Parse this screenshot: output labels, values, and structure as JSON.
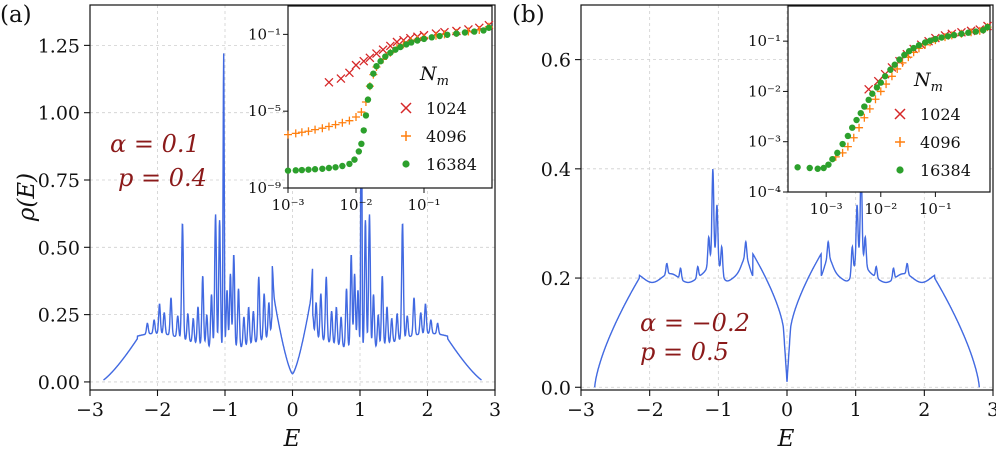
{
  "chart_data": [
    {
      "panel_label": "(a)",
      "type": "line",
      "xlabel": "E",
      "ylabel": "ρ(E)",
      "xlim": [
        -3,
        3
      ],
      "ylim": [
        -0.03,
        1.4
      ],
      "xticks": [
        -3,
        -2,
        -1,
        0,
        1,
        2,
        3
      ],
      "xtick_labels": [
        "−3",
        "−2",
        "−1",
        "0",
        "1",
        "2",
        "3"
      ],
      "yticks": [
        0.0,
        0.25,
        0.5,
        0.75,
        1.0,
        1.25
      ],
      "ytick_labels": [
        "0.00",
        "0.25",
        "0.50",
        "0.75",
        "1.00",
        "1.25"
      ],
      "grid": true,
      "annotation": [
        "α = 0.1",
        "p = 0.4"
      ],
      "series_color": "#4169e1",
      "spikes": [
        {
          "x": 0.3,
          "h": 0.08
        },
        {
          "x": 0.35,
          "h": 0.13
        },
        {
          "x": 0.42,
          "h": 0.17
        },
        {
          "x": 0.5,
          "h": 0.24
        },
        {
          "x": 0.58,
          "h": 0.12
        },
        {
          "x": 0.65,
          "h": 0.14
        },
        {
          "x": 0.72,
          "h": 0.11
        },
        {
          "x": 0.8,
          "h": 0.22
        },
        {
          "x": 0.87,
          "h": 0.35
        },
        {
          "x": 0.92,
          "h": 0.28
        },
        {
          "x": 0.97,
          "h": 0.22
        },
        {
          "x": 1.02,
          "h": 1.1
        },
        {
          "x": 1.08,
          "h": 0.48
        },
        {
          "x": 1.14,
          "h": 0.5
        },
        {
          "x": 1.2,
          "h": 0.2
        },
        {
          "x": 1.27,
          "h": 0.12
        },
        {
          "x": 1.33,
          "h": 0.26
        },
        {
          "x": 1.4,
          "h": 0.14
        },
        {
          "x": 1.47,
          "h": 0.09
        },
        {
          "x": 1.55,
          "h": 0.1
        },
        {
          "x": 1.63,
          "h": 0.43
        },
        {
          "x": 1.7,
          "h": 0.08
        },
        {
          "x": 1.8,
          "h": 0.14
        },
        {
          "x": 1.9,
          "h": 0.08
        },
        {
          "x": 1.97,
          "h": 0.11
        },
        {
          "x": 2.05,
          "h": 0.05
        },
        {
          "x": 2.15,
          "h": 0.04
        }
      ],
      "inset": {
        "type": "scatter",
        "xscale": "log",
        "yscale": "log",
        "xlim": [
          0.001,
          1.0
        ],
        "ylim": [
          1e-09,
          3.0
        ],
        "xticks": [
          0.001,
          0.01,
          0.1
        ],
        "xtick_labels": [
          "10⁻³",
          "10⁻²",
          "10⁻¹"
        ],
        "yticks": [
          0.1,
          1e-05,
          1e-09
        ],
        "ytick_labels": [
          "10⁻¹",
          "10⁻⁵",
          "10⁻⁹"
        ],
        "legend_title": "N_m",
        "legend_position": "right",
        "series": [
          {
            "name": "1024",
            "marker": "x",
            "color": "#d62728",
            "points": [
              [
                0.004,
                0.00032
              ],
              [
                0.006,
                0.0005
              ],
              [
                0.008,
                0.001
              ],
              [
                0.01,
                0.0025
              ],
              [
                0.013,
                0.004
              ],
              [
                0.016,
                0.006
              ],
              [
                0.02,
                0.01
              ],
              [
                0.025,
                0.016
              ],
              [
                0.032,
                0.025
              ],
              [
                0.04,
                0.04
              ],
              [
                0.05,
                0.05
              ],
              [
                0.063,
                0.063
              ],
              [
                0.08,
                0.075
              ],
              [
                0.1,
                0.09
              ],
              [
                0.15,
                0.11
              ],
              [
                0.2,
                0.13
              ],
              [
                0.3,
                0.15
              ],
              [
                0.45,
                0.18
              ],
              [
                0.65,
                0.22
              ],
              [
                0.9,
                0.3
              ]
            ]
          },
          {
            "name": "4096",
            "marker": "+",
            "color": "#ff7f0e",
            "points": [
              [
                0.001,
                6e-07
              ],
              [
                0.0013,
                7e-07
              ],
              [
                0.0016,
                8e-07
              ],
              [
                0.002,
                9e-07
              ],
              [
                0.0025,
                1.1e-06
              ],
              [
                0.0032,
                1.3e-06
              ],
              [
                0.004,
                1.6e-06
              ],
              [
                0.005,
                2e-06
              ],
              [
                0.0063,
                2.5e-06
              ],
              [
                0.008,
                3.2e-06
              ],
              [
                0.01,
                5e-06
              ],
              [
                0.012,
                9e-06
              ],
              [
                0.014,
                3e-05
              ],
              [
                0.016,
                0.0002
              ],
              [
                0.018,
                0.0008
              ],
              [
                0.02,
                0.002
              ],
              [
                0.025,
                0.005
              ],
              [
                0.032,
                0.011
              ],
              [
                0.04,
                0.02
              ],
              [
                0.05,
                0.03
              ],
              [
                0.065,
                0.045
              ],
              [
                0.08,
                0.055
              ],
              [
                0.1,
                0.068
              ],
              [
                0.15,
                0.085
              ],
              [
                0.2,
                0.1
              ],
              [
                0.3,
                0.12
              ],
              [
                0.45,
                0.14
              ],
              [
                0.65,
                0.17
              ],
              [
                0.9,
                0.25
              ]
            ]
          },
          {
            "name": "16384",
            "marker": "dot",
            "color": "#2ca02c",
            "points": [
              [
                0.001,
                8e-09
              ],
              [
                0.0013,
                8.3e-09
              ],
              [
                0.0016,
                8.6e-09
              ],
              [
                0.002,
                9e-09
              ],
              [
                0.0025,
                9.5e-09
              ],
              [
                0.0032,
                1e-08
              ],
              [
                0.004,
                1.1e-08
              ],
              [
                0.005,
                1.2e-08
              ],
              [
                0.0063,
                1.4e-08
              ],
              [
                0.008,
                1.8e-08
              ],
              [
                0.0095,
                3e-08
              ],
              [
                0.011,
                8e-08
              ],
              [
                0.012,
                2e-07
              ],
              [
                0.013,
                1e-06
              ],
              [
                0.014,
                6e-06
              ],
              [
                0.015,
                4e-05
              ],
              [
                0.016,
                0.0002
              ],
              [
                0.018,
                0.0009
              ],
              [
                0.02,
                0.0022
              ],
              [
                0.023,
                0.004
              ],
              [
                0.027,
                0.007
              ],
              [
                0.032,
                0.011
              ],
              [
                0.038,
                0.016
              ],
              [
                0.045,
                0.022
              ],
              [
                0.055,
                0.03
              ],
              [
                0.065,
                0.038
              ],
              [
                0.08,
                0.048
              ],
              [
                0.1,
                0.058
              ],
              [
                0.13,
                0.07
              ],
              [
                0.17,
                0.082
              ],
              [
                0.22,
                0.095
              ],
              [
                0.3,
                0.11
              ],
              [
                0.4,
                0.125
              ],
              [
                0.55,
                0.14
              ],
              [
                0.75,
                0.16
              ],
              [
                0.9,
                0.22
              ]
            ]
          }
        ]
      }
    },
    {
      "panel_label": "(b)",
      "type": "line",
      "xlabel": "E",
      "ylabel": "",
      "xlim": [
        -3,
        3
      ],
      "ylim": [
        -0.005,
        0.7
      ],
      "xticks": [
        -3,
        -2,
        -1,
        0,
        1,
        2,
        3
      ],
      "xtick_labels": [
        "−3",
        "−2",
        "−1",
        "0",
        "1",
        "2",
        "3"
      ],
      "yticks": [
        0.0,
        0.2,
        0.4,
        0.6
      ],
      "ytick_labels": [
        "0.0",
        "0.2",
        "0.4",
        "0.6"
      ],
      "grid": true,
      "annotation": [
        "α = −0.2",
        "p = 0.5"
      ],
      "series_color": "#4169e1",
      "spikes": [
        {
          "x": 0.6,
          "h": 0.03
        },
        {
          "x": 0.95,
          "h": 0.05
        },
        {
          "x": 1.02,
          "h": 0.1
        },
        {
          "x": 1.08,
          "h": 0.16
        },
        {
          "x": 1.14,
          "h": 0.05
        },
        {
          "x": 1.3,
          "h": 0.02
        },
        {
          "x": 1.55,
          "h": 0.02
        },
        {
          "x": 1.75,
          "h": 0.02
        }
      ],
      "inset": {
        "type": "scatter",
        "xscale": "log",
        "yscale": "log",
        "xlim": [
          0.0002,
          1.0
        ],
        "ylim": [
          0.0001,
          0.5
        ],
        "xticks": [
          0.001,
          0.01,
          0.1
        ],
        "xtick_labels": [
          "10⁻³",
          "10⁻²",
          "10⁻¹"
        ],
        "yticks": [
          0.1,
          0.01,
          0.001,
          0.0001
        ],
        "ytick_labels": [
          "10⁻¹",
          "10⁻²",
          "10⁻³",
          "10⁻⁴"
        ],
        "legend_title": "N_m",
        "legend_position": "right",
        "series": [
          {
            "name": "1024",
            "marker": "x",
            "color": "#d62728",
            "points": [
              [
                0.006,
                0.011
              ],
              [
                0.009,
                0.016
              ],
              [
                0.012,
                0.022
              ],
              [
                0.016,
                0.03
              ],
              [
                0.022,
                0.04
              ],
              [
                0.03,
                0.055
              ],
              [
                0.04,
                0.07
              ],
              [
                0.055,
                0.085
              ],
              [
                0.075,
                0.1
              ],
              [
                0.1,
                0.115
              ],
              [
                0.15,
                0.13
              ],
              [
                0.2,
                0.14
              ],
              [
                0.3,
                0.15
              ],
              [
                0.45,
                0.16
              ],
              [
                0.65,
                0.17
              ],
              [
                0.9,
                0.2
              ]
            ]
          },
          {
            "name": "4096",
            "marker": "+",
            "color": "#ff7f0e",
            "points": [
              [
                0.0015,
                0.0005
              ],
              [
                0.002,
                0.0006
              ],
              [
                0.0025,
                0.0008
              ],
              [
                0.0032,
                0.0012
              ],
              [
                0.004,
                0.0019
              ],
              [
                0.005,
                0.003
              ],
              [
                0.0063,
                0.0045
              ],
              [
                0.008,
                0.007
              ],
              [
                0.01,
                0.01
              ],
              [
                0.0125,
                0.014
              ],
              [
                0.016,
                0.02
              ],
              [
                0.02,
                0.028
              ],
              [
                0.025,
                0.037
              ],
              [
                0.032,
                0.048
              ],
              [
                0.04,
                0.06
              ],
              [
                0.05,
                0.072
              ],
              [
                0.065,
                0.085
              ],
              [
                0.08,
                0.095
              ],
              [
                0.1,
                0.105
              ],
              [
                0.15,
                0.12
              ],
              [
                0.2,
                0.13
              ],
              [
                0.3,
                0.14
              ],
              [
                0.45,
                0.15
              ],
              [
                0.65,
                0.16
              ],
              [
                0.9,
                0.19
              ]
            ]
          },
          {
            "name": "16384",
            "marker": "dot",
            "color": "#2ca02c",
            "points": [
              [
                0.0003,
                0.00031
              ],
              [
                0.0005,
                0.0003
              ],
              [
                0.0007,
                0.00029
              ],
              [
                0.0009,
                0.0003
              ],
              [
                0.0011,
                0.00035
              ],
              [
                0.0013,
                0.00045
              ],
              [
                0.0016,
                0.0006
              ],
              [
                0.002,
                0.0009
              ],
              [
                0.0025,
                0.0013
              ],
              [
                0.003,
                0.0019
              ],
              [
                0.0036,
                0.0027
              ],
              [
                0.0043,
                0.0037
              ],
              [
                0.005,
                0.005
              ],
              [
                0.006,
                0.0068
              ],
              [
                0.007,
                0.009
              ],
              [
                0.0085,
                0.012
              ],
              [
                0.01,
                0.015
              ],
              [
                0.012,
                0.02
              ],
              [
                0.015,
                0.027
              ],
              [
                0.018,
                0.034
              ],
              [
                0.022,
                0.043
              ],
              [
                0.027,
                0.053
              ],
              [
                0.033,
                0.063
              ],
              [
                0.04,
                0.073
              ],
              [
                0.05,
                0.083
              ],
              [
                0.065,
                0.094
              ],
              [
                0.08,
                0.102
              ],
              [
                0.1,
                0.11
              ],
              [
                0.13,
                0.118
              ],
              [
                0.17,
                0.125
              ],
              [
                0.22,
                0.132
              ],
              [
                0.3,
                0.14
              ],
              [
                0.4,
                0.147
              ],
              [
                0.55,
                0.155
              ],
              [
                0.75,
                0.165
              ],
              [
                0.9,
                0.19
              ]
            ]
          }
        ]
      }
    }
  ]
}
